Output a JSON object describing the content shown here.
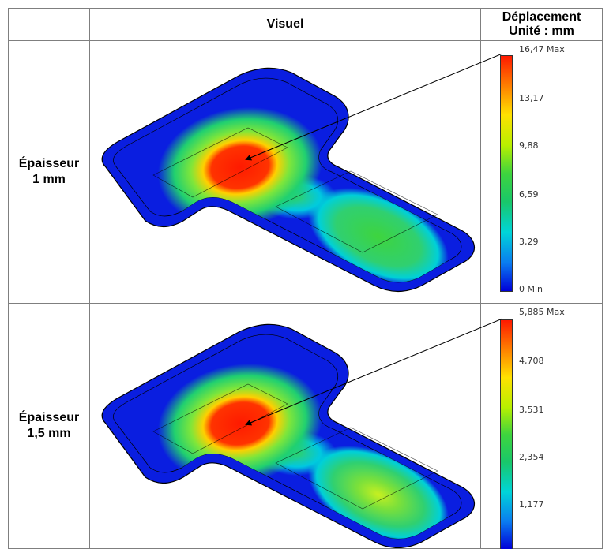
{
  "header": {
    "visual_title": "Visuel",
    "legend_title_line1": "Déplacement",
    "legend_title_line2": "Unité : mm"
  },
  "rows": [
    {
      "label_line1": "Épaisseur",
      "label_line2": "1 mm",
      "scale": [
        "16,47 Max",
        "13,17",
        "9,88",
        "6,59",
        "3,29",
        "0 Min"
      ]
    },
    {
      "label_line1": "Épaisseur",
      "label_line2": "1,5 mm",
      "scale": [
        "5,885 Max",
        "4,708",
        "3,531",
        "2,354",
        "1,177"
      ]
    }
  ],
  "colors": {
    "max": "#ff1a00",
    "mid": "#3ed43e",
    "min": "#0000d8"
  }
}
